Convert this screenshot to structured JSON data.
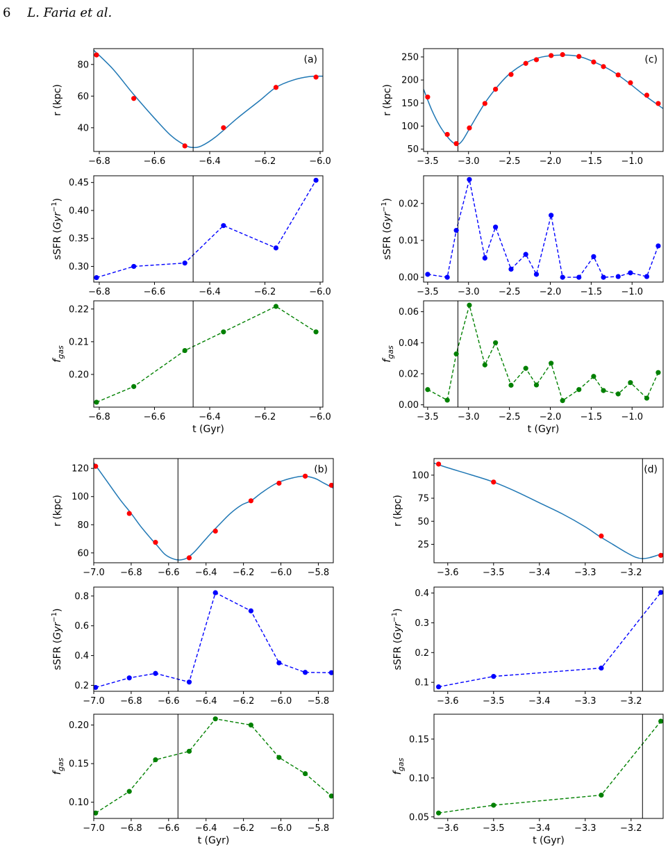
{
  "page_header": {
    "page_number": "6",
    "authors": "L. Faria et al."
  },
  "chart_data": [
    {
      "panel": "a",
      "type": "line",
      "panel_label": "(a)",
      "xlabel": "t (Gyr)",
      "xlim": [
        -6.82,
        -5.99
      ],
      "xticks": [
        -6.8,
        -6.6,
        -6.4,
        -6.2,
        -6.0
      ],
      "xticklabels": [
        "−6.8",
        "−6.6",
        "−6.4",
        "−6.2",
        "−6.0"
      ],
      "pericenter_t": -6.46,
      "subplots": [
        {
          "role": "r",
          "ylabel": "r (kpc)",
          "ylim": [
            25,
            90
          ],
          "yticks": [
            40,
            60,
            80
          ],
          "curve": [
            [
              -6.82,
              89
            ],
            [
              -6.75,
              77
            ],
            [
              -6.68,
              62
            ],
            [
              -6.6,
              46
            ],
            [
              -6.54,
              35
            ],
            [
              -6.49,
              29
            ],
            [
              -6.46,
              27.5
            ],
            [
              -6.43,
              28.5
            ],
            [
              -6.38,
              34
            ],
            [
              -6.3,
              46
            ],
            [
              -6.22,
              57
            ],
            [
              -6.16,
              65.5
            ],
            [
              -6.1,
              70
            ],
            [
              -6.04,
              72.3
            ],
            [
              -5.99,
              72.6
            ]
          ],
          "points": {
            "x": [
              -6.81,
              -6.675,
              -6.49,
              -6.35,
              -6.16,
              -6.015
            ],
            "y": [
              86,
              58.5,
              28.5,
              40,
              65.5,
              72
            ]
          },
          "point_color": "#ff0000",
          "line_color": "#1f77b4"
        },
        {
          "role": "sSFR",
          "ylabel": "sSFR (Gyr⁻¹)",
          "ylim": [
            0.272,
            0.462
          ],
          "yticks": [
            0.3,
            0.35,
            0.4,
            0.45
          ],
          "yticklabels": [
            "0.30",
            "0.35",
            "0.40",
            "0.45"
          ],
          "points": {
            "x": [
              -6.81,
              -6.675,
              -6.49,
              -6.35,
              -6.16,
              -6.015
            ],
            "y": [
              0.28,
              0.3,
              0.306,
              0.373,
              0.333,
              0.454
            ]
          },
          "point_color": "#0000ff"
        },
        {
          "role": "fgas",
          "ylabel": "f_gas",
          "ylim": [
            0.19,
            0.2225
          ],
          "yticks": [
            0.2,
            0.21,
            0.22
          ],
          "yticklabels": [
            "0.20",
            "0.21",
            "0.22"
          ],
          "points": {
            "x": [
              -6.81,
              -6.675,
              -6.49,
              -6.35,
              -6.16,
              -6.015
            ],
            "y": [
              0.1915,
              0.1963,
              0.2073,
              0.213,
              0.2208,
              0.213
            ]
          },
          "point_color": "#008000"
        }
      ]
    },
    {
      "panel": "c",
      "type": "line",
      "panel_label": "(c)",
      "xlabel": "t (Gyr)",
      "xlim": [
        -3.55,
        -0.62
      ],
      "xticks": [
        -3.5,
        -3.0,
        -2.5,
        -2.0,
        -1.5,
        -1.0
      ],
      "xticklabels": [
        "−3.5",
        "−3.0",
        "−2.5",
        "−2.0",
        "−1.5",
        "−1.0"
      ],
      "pericenter_t": -3.13,
      "subplots": [
        {
          "role": "r",
          "ylabel": "r (kpc)",
          "ylim": [
            45,
            268
          ],
          "yticks": [
            50,
            100,
            150,
            200,
            250
          ],
          "curve": [
            [
              -3.55,
              180
            ],
            [
              -3.45,
              135
            ],
            [
              -3.35,
              100
            ],
            [
              -3.25,
              75
            ],
            [
              -3.18,
              63
            ],
            [
              -3.13,
              60
            ],
            [
              -3.07,
              70
            ],
            [
              -2.97,
              100
            ],
            [
              -2.8,
              150
            ],
            [
              -2.65,
              185
            ],
            [
              -2.5,
              213
            ],
            [
              -2.3,
              237
            ],
            [
              -2.1,
              250
            ],
            [
              -1.85,
              254
            ],
            [
              -1.65,
              251
            ],
            [
              -1.45,
              238
            ],
            [
              -1.25,
              220
            ],
            [
              -1.05,
              195
            ],
            [
              -0.85,
              167
            ],
            [
              -0.62,
              138
            ]
          ],
          "points": {
            "x": [
              -3.5,
              -3.26,
              -3.15,
              -2.99,
              -2.8,
              -2.67,
              -2.48,
              -2.3,
              -2.17,
              -1.99,
              -1.85,
              -1.65,
              -1.47,
              -1.35,
              -1.17,
              -1.02,
              -0.82,
              -0.68
            ],
            "y": [
              163,
              82,
              62,
              96,
              149,
              180,
              212,
              236,
              244,
              253,
              255,
              251,
              239,
              229,
              211,
              194,
              167,
              149
            ]
          },
          "point_color": "#ff0000",
          "line_color": "#1f77b4"
        },
        {
          "role": "sSFR",
          "ylabel": "sSFR (Gyr⁻¹)",
          "ylim": [
            -0.0013,
            0.0275
          ],
          "yticks": [
            0.0,
            0.01,
            0.02
          ],
          "yticklabels": [
            "0.00",
            "0.01",
            "0.02"
          ],
          "points": {
            "x": [
              -3.5,
              -3.26,
              -3.15,
              -2.99,
              -2.8,
              -2.67,
              -2.48,
              -2.3,
              -2.17,
              -1.99,
              -1.85,
              -1.65,
              -1.47,
              -1.35,
              -1.17,
              -1.02,
              -0.82,
              -0.68
            ],
            "y": [
              0.0008,
              0.0,
              0.0127,
              0.0265,
              0.0052,
              0.0136,
              0.0022,
              0.0062,
              0.0008,
              0.0168,
              0.0,
              0.0,
              0.0056,
              0.0,
              0.0002,
              0.0012,
              0.0002,
              0.0085
            ]
          },
          "point_color": "#0000ff"
        },
        {
          "role": "fgas",
          "ylabel": "f_gas",
          "ylim": [
            -0.0015,
            0.067
          ],
          "yticks": [
            0.0,
            0.02,
            0.04,
            0.06
          ],
          "yticklabels": [
            "0.00",
            "0.02",
            "0.04",
            "0.06"
          ],
          "points": {
            "x": [
              -3.5,
              -3.26,
              -3.15,
              -2.99,
              -2.8,
              -2.67,
              -2.48,
              -2.3,
              -2.17,
              -1.99,
              -1.85,
              -1.65,
              -1.47,
              -1.35,
              -1.17,
              -1.02,
              -0.82,
              -0.68
            ],
            "y": [
              0.0098,
              0.003,
              0.0328,
              0.0642,
              0.0257,
              0.04,
              0.0126,
              0.0235,
              0.0128,
              0.0268,
              0.0027,
              0.0098,
              0.0183,
              0.0092,
              0.007,
              0.0143,
              0.0043,
              0.0208
            ]
          },
          "point_color": "#008000"
        }
      ]
    },
    {
      "panel": "b",
      "type": "line",
      "panel_label": "(b)",
      "xlabel": "t (Gyr)",
      "xlim": [
        -7.0,
        -5.72
      ],
      "xticks": [
        -7.0,
        -6.8,
        -6.6,
        -6.4,
        -6.2,
        -6.0,
        -5.8
      ],
      "xticklabels": [
        "−7.0",
        "−6.8",
        "−6.6",
        "−6.4",
        "−6.2",
        "−6.0",
        "−5.8"
      ],
      "pericenter_t": -6.55,
      "subplots": [
        {
          "role": "r",
          "ylabel": "r (kpc)",
          "ylim": [
            53,
            127
          ],
          "yticks": [
            60,
            80,
            100,
            120
          ],
          "curve": [
            [
              -7.0,
              124
            ],
            [
              -6.93,
              111
            ],
            [
              -6.86,
              98
            ],
            [
              -6.8,
              88
            ],
            [
              -6.75,
              79
            ],
            [
              -6.7,
              71
            ],
            [
              -6.66,
              65
            ],
            [
              -6.62,
              59
            ],
            [
              -6.58,
              56
            ],
            [
              -6.54,
              55
            ],
            [
              -6.5,
              56.5
            ],
            [
              -6.46,
              61
            ],
            [
              -6.42,
              67
            ],
            [
              -6.38,
              73
            ],
            [
              -6.33,
              80
            ],
            [
              -6.27,
              88
            ],
            [
              -6.21,
              94
            ],
            [
              -6.16,
              97
            ],
            [
              -6.1,
              103
            ],
            [
              -6.03,
              109
            ],
            [
              -5.96,
              112.5
            ],
            [
              -5.88,
              114.5
            ],
            [
              -5.82,
              113
            ],
            [
              -5.77,
              109.5
            ],
            [
              -5.72,
              106
            ]
          ],
          "points": {
            "x": [
              -6.99,
              -6.81,
              -6.67,
              -6.49,
              -6.35,
              -6.16,
              -6.01,
              -5.87,
              -5.73
            ],
            "y": [
              121.5,
              88,
              67.5,
              56.5,
              75.5,
              97,
              109.5,
              114.5,
              108
            ]
          },
          "point_color": "#ff0000",
          "line_color": "#1f77b4"
        },
        {
          "role": "sSFR",
          "ylabel": "sSFR (Gyr⁻¹)",
          "ylim": [
            0.16,
            0.86
          ],
          "yticks": [
            0.2,
            0.4,
            0.6,
            0.8
          ],
          "yticklabels": [
            "0.2",
            "0.4",
            "0.6",
            "0.8"
          ],
          "points": {
            "x": [
              -6.99,
              -6.81,
              -6.67,
              -6.49,
              -6.35,
              -6.16,
              -6.01,
              -5.87,
              -5.73
            ],
            "y": [
              0.186,
              0.25,
              0.28,
              0.222,
              0.822,
              0.7,
              0.351,
              0.287,
              0.285
            ]
          },
          "point_color": "#0000ff"
        },
        {
          "role": "fgas",
          "ylabel": "f_gas",
          "ylim": [
            0.079,
            0.214
          ],
          "yticks": [
            0.1,
            0.15,
            0.2
          ],
          "yticklabels": [
            "0.10",
            "0.15",
            "0.20"
          ],
          "points": {
            "x": [
              -6.99,
              -6.81,
              -6.67,
              -6.49,
              -6.35,
              -6.16,
              -6.01,
              -5.87,
              -5.73
            ],
            "y": [
              0.086,
              0.114,
              0.155,
              0.166,
              0.208,
              0.2,
              0.158,
              0.137,
              0.108
            ]
          },
          "point_color": "#008000"
        }
      ]
    },
    {
      "panel": "d",
      "type": "line",
      "panel_label": "(d)",
      "xlabel": "t (Gyr)",
      "xlim": [
        -3.63,
        -3.13
      ],
      "xticks": [
        -3.6,
        -3.5,
        -3.4,
        -3.3,
        -3.2
      ],
      "xticklabels": [
        "−3.6",
        "−3.5",
        "−3.4",
        "−3.3",
        "−3.2"
      ],
      "pericenter_t": -3.175,
      "subplots": [
        {
          "role": "r",
          "ylabel": "r (kpc)",
          "ylim": [
            5,
            118
          ],
          "yticks": [
            25,
            50,
            75,
            100
          ],
          "curve": [
            [
              -3.63,
              113
            ],
            [
              -3.6,
              108
            ],
            [
              -3.55,
              100.5
            ],
            [
              -3.5,
              92.5
            ],
            [
              -3.45,
              82
            ],
            [
              -3.4,
              70
            ],
            [
              -3.35,
              58
            ],
            [
              -3.3,
              44
            ],
            [
              -3.27,
              34
            ],
            [
              -3.24,
              25
            ],
            [
              -3.21,
              16
            ],
            [
              -3.19,
              11
            ],
            [
              -3.175,
              9.5
            ],
            [
              -3.16,
              10.5
            ],
            [
              -3.14,
              13.5
            ],
            [
              -3.13,
              15
            ]
          ],
          "points": {
            "x": [
              -3.62,
              -3.5,
              -3.265,
              -3.135
            ],
            "y": [
              112,
              92.5,
              34,
              13
            ]
          },
          "point_color": "#ff0000",
          "line_color": "#1f77b4"
        },
        {
          "role": "sSFR",
          "ylabel": "sSFR (Gyr⁻¹)",
          "ylim": [
            0.07,
            0.42
          ],
          "yticks": [
            0.1,
            0.2,
            0.3,
            0.4
          ],
          "yticklabels": [
            "0.1",
            "0.2",
            "0.3",
            "0.4"
          ],
          "points": {
            "x": [
              -3.62,
              -3.5,
              -3.265,
              -3.135
            ],
            "y": [
              0.085,
              0.12,
              0.148,
              0.402
            ]
          },
          "point_color": "#0000ff"
        },
        {
          "role": "fgas",
          "ylabel": "f_gas",
          "ylim": [
            0.048,
            0.182
          ],
          "yticks": [
            0.05,
            0.1,
            0.15
          ],
          "yticklabels": [
            "0.05",
            "0.10",
            "0.15"
          ],
          "points": {
            "x": [
              -3.62,
              -3.5,
              -3.265,
              -3.135
            ],
            "y": [
              0.055,
              0.065,
              0.078,
              0.173
            ]
          },
          "point_color": "#008000"
        }
      ]
    }
  ]
}
